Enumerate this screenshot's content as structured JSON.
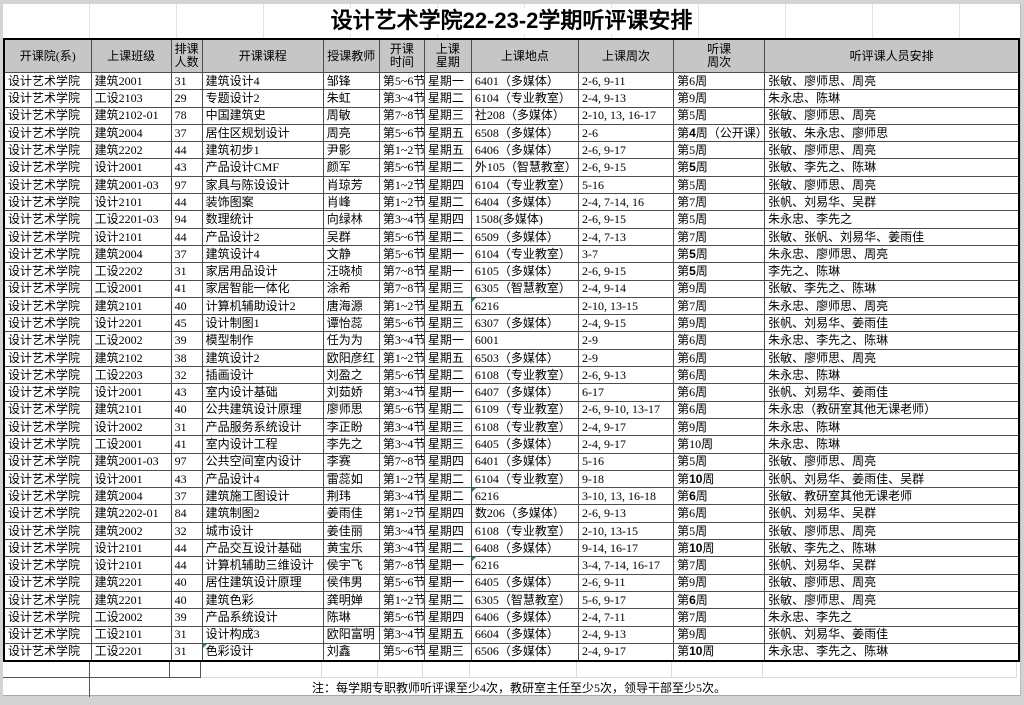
{
  "app": {
    "title_prefix": "设计艺术学院",
    "title_num": "22-23-2",
    "title_suffix": "学期听评课安排"
  },
  "colors": {
    "header_bg": "#c6c6c6",
    "grid_line": "#4d4d4d",
    "outer_border": "#000000",
    "page_bg": "#d3d3d3",
    "flag_green": "#1e8f3e"
  },
  "table": {
    "columns": [
      {
        "label": "开课院(系)"
      },
      {
        "label": "上课班级"
      },
      {
        "label": "排课\n人数"
      },
      {
        "label": "开课课程"
      },
      {
        "label": "授课教师"
      },
      {
        "label": "开课\n时间"
      },
      {
        "label": "上课\n星期"
      },
      {
        "label": "上课地点"
      },
      {
        "label": "上课周次"
      },
      {
        "label": "听课\n周次"
      },
      {
        "label": "听评课人员安排"
      }
    ],
    "rows": [
      {
        "dept": "设计艺术学院",
        "class": "建筑2001",
        "count": "31",
        "course": "建筑设计4",
        "teacher": "邹锋",
        "time": "第5~6节",
        "day": "星期一",
        "place": "6401（多媒体）",
        "weeks": "2-6, 9-11",
        "listen": "第6周",
        "listen_bold": false,
        "staff": "张敏、廖师思、周亮"
      },
      {
        "dept": "设计艺术学院",
        "class": "工设2103",
        "count": "29",
        "course": "专题设计2",
        "teacher": "朱虹",
        "time": "第3~4节",
        "day": "星期二",
        "place": "6104（专业教室）",
        "weeks": "2-4, 9-13",
        "listen": "第9周",
        "listen_bold": false,
        "staff": "朱永忠、陈琳"
      },
      {
        "dept": "设计艺术学院",
        "class": "建筑2102-01",
        "count": "78",
        "course": "中国建筑史",
        "teacher": "周敏",
        "time": "第7~8节",
        "day": "星期三",
        "place": "社208（多媒体）",
        "weeks": "2-10, 13, 16-17",
        "listen": "第5周",
        "listen_bold": false,
        "staff": "张敏、廖师思、周亮"
      },
      {
        "dept": "设计艺术学院",
        "class": "建筑2004",
        "count": "37",
        "course": "居住区规划设计",
        "teacher": "周亮",
        "time": "第5~6节",
        "day": "星期五",
        "place": "6508（多媒体）",
        "weeks": "2-6",
        "listen": "第4周（公开课）",
        "listen_bold": true,
        "staff": "张敏、朱永忠、廖师思"
      },
      {
        "dept": "设计艺术学院",
        "class": "建筑2202",
        "count": "44",
        "course": "建筑初步1",
        "teacher": "尹影",
        "time": "第1~2节",
        "day": "星期五",
        "place": "6406（多媒体）",
        "weeks": "2-6, 9-17",
        "listen": "第5周",
        "listen_bold": false,
        "staff": "张敏、廖师思、周亮"
      },
      {
        "dept": "设计艺术学院",
        "class": "设计2001",
        "count": "43",
        "course": "产品设计CMF",
        "teacher": "颜军",
        "time": "第5~6节",
        "day": "星期二",
        "place": "外105（智慧教室）",
        "weeks": "2-6, 9-15",
        "listen": "第5周",
        "listen_bold": true,
        "staff": "张敏、李先之、陈琳"
      },
      {
        "dept": "设计艺术学院",
        "class": "建筑2001-03",
        "count": "97",
        "course": "家具与陈设设计",
        "teacher": "肖琼芳",
        "time": "第1~2节",
        "day": "星期四",
        "place": "6104（专业教室）",
        "weeks": "5-16",
        "listen": "第5周",
        "listen_bold": false,
        "staff": "张敏、廖师思、周亮"
      },
      {
        "dept": "设计艺术学院",
        "class": "设计2101",
        "count": "44",
        "course": "装饰图案",
        "teacher": "肖峰",
        "time": "第1~2节",
        "day": "星期二",
        "place": "6404（多媒体）",
        "weeks": "2-4, 7-14, 16",
        "listen": "第7周",
        "listen_bold": false,
        "staff": "张帆、刘易华、吴群"
      },
      {
        "dept": "设计艺术学院",
        "class": "工设2201-03",
        "count": "94",
        "course": "数理统计",
        "teacher": "向绿林",
        "time": "第3~4节",
        "day": "星期四",
        "place": "1508(多媒体)",
        "weeks": "2-6, 9-15",
        "listen": "第5周",
        "listen_bold": false,
        "staff": "朱永忠、李先之"
      },
      {
        "dept": "设计艺术学院",
        "class": "设计2101",
        "count": "44",
        "course": "产品设计2",
        "teacher": "吴群",
        "time": "第5~6节",
        "day": "星期二",
        "place": "6509（多媒体）",
        "weeks": "2-4, 7-13",
        "listen": "第7周",
        "listen_bold": false,
        "staff": "张敏、张帆、刘易华、姜雨佳"
      },
      {
        "dept": "设计艺术学院",
        "class": "建筑2004",
        "count": "37",
        "course": "建筑设计4",
        "teacher": "文静",
        "time": "第5~6节",
        "day": "星期一",
        "place": "6104（专业教室）",
        "weeks": "3-7",
        "listen": "第5周",
        "listen_bold": true,
        "staff": "朱永忠、廖师思、周亮"
      },
      {
        "dept": "设计艺术学院",
        "class": "工设2202",
        "count": "31",
        "course": "家居用品设计",
        "teacher": "汪晓桢",
        "time": "第7~8节",
        "day": "星期一",
        "place": "6105（多媒体）",
        "weeks": "2-6, 9-15",
        "listen": "第5周",
        "listen_bold": true,
        "staff": "李先之、陈琳"
      },
      {
        "dept": "设计艺术学院",
        "class": "工设2001",
        "count": "41",
        "course": "家居智能一体化",
        "teacher": "涂希",
        "time": "第7~8节",
        "day": "星期三",
        "place": "6305（智慧教室）",
        "weeks": "2-4, 9-14",
        "listen": "第9周",
        "listen_bold": false,
        "staff": "张敏、李先之、陈琳"
      },
      {
        "dept": "设计艺术学院",
        "class": "建筑2101",
        "count": "40",
        "course": "计算机辅助设计2",
        "teacher": "唐海源",
        "time": "第1~2节",
        "day": "星期五",
        "place": "6216",
        "weeks": "2-10, 13-15",
        "listen": "第7周",
        "listen_bold": false,
        "staff": "朱永忠、廖师思、周亮",
        "flag": "place"
      },
      {
        "dept": "设计艺术学院",
        "class": "设计2201",
        "count": "45",
        "course": "设计制图1",
        "teacher": "谭怡蕊",
        "time": "第5~6节",
        "day": "星期三",
        "place": "6307（多媒体）",
        "weeks": "2-4, 9-15",
        "listen": "第9周",
        "listen_bold": false,
        "staff": "张帆、刘易华、姜雨佳"
      },
      {
        "dept": "设计艺术学院",
        "class": "工设2002",
        "count": "39",
        "course": "模型制作",
        "teacher": "任为为",
        "time": "第3~4节",
        "day": "星期一",
        "place": "6001",
        "weeks": "2-9",
        "listen": "第6周",
        "listen_bold": false,
        "staff": "朱永忠、李先之、陈琳"
      },
      {
        "dept": "设计艺术学院",
        "class": "建筑2102",
        "count": "38",
        "course": "建筑设计2",
        "teacher": "欧阳彦红",
        "time": "第1~2节",
        "day": "星期五",
        "place": "6503（多媒体）",
        "weeks": "2-9",
        "listen": "第6周",
        "listen_bold": false,
        "staff": "张敏、廖师思、周亮"
      },
      {
        "dept": "设计艺术学院",
        "class": "工设2203",
        "count": "32",
        "course": "插画设计",
        "teacher": "刘盈之",
        "time": "第5~6节",
        "day": "星期二",
        "place": "6108（专业教室）",
        "weeks": "2-6, 9-13",
        "listen": "第6周",
        "listen_bold": false,
        "staff": "朱永忠、陈琳"
      },
      {
        "dept": "设计艺术学院",
        "class": "设计2001",
        "count": "43",
        "course": "室内设计基础",
        "teacher": "刘茹娇",
        "time": "第3~4节",
        "day": "星期一",
        "place": "6407（多媒体）",
        "weeks": "6-17",
        "listen": "第6周",
        "listen_bold": false,
        "staff": "张帆、刘易华、姜雨佳"
      },
      {
        "dept": "设计艺术学院",
        "class": "建筑2101",
        "count": "40",
        "course": "公共建筑设计原理",
        "teacher": "廖师思",
        "time": "第5~6节",
        "day": "星期二",
        "place": "6109（专业教室）",
        "weeks": "2-6, 9-10, 13-17",
        "listen": "第6周",
        "listen_bold": false,
        "staff": "朱永忠（教研室其他无课老师）"
      },
      {
        "dept": "设计艺术学院",
        "class": "设计2002",
        "count": "31",
        "course": "产品服务系统设计",
        "teacher": "李正盼",
        "time": "第3~4节",
        "day": "星期三",
        "place": "6108（专业教室）",
        "weeks": "2-4, 9-17",
        "listen": "第9周",
        "listen_bold": false,
        "staff": "朱永忠、陈琳"
      },
      {
        "dept": "设计艺术学院",
        "class": "工设2001",
        "count": "41",
        "course": "室内设计工程",
        "teacher": "李先之",
        "time": "第3~4节",
        "day": "星期三",
        "place": "6405（多媒体）",
        "weeks": "2-4, 9-17",
        "listen": "第10周",
        "listen_bold": false,
        "staff": "朱永忠、陈琳"
      },
      {
        "dept": "设计艺术学院",
        "class": "建筑2001-03",
        "count": "97",
        "course": "公共空间室内设计",
        "teacher": "李赛",
        "time": "第7~8节",
        "day": "星期四",
        "place": "6401（多媒体）",
        "weeks": "5-16",
        "listen": "第5周",
        "listen_bold": false,
        "staff": "张敏、廖师思、周亮"
      },
      {
        "dept": "设计艺术学院",
        "class": "设计2001",
        "count": "43",
        "course": "产品设计4",
        "teacher": "雷蕊如",
        "time": "第1~2节",
        "day": "星期二",
        "place": "6104（专业教室）",
        "weeks": "9-18",
        "listen": "第10周",
        "listen_bold": true,
        "staff": "张帆、刘易华、姜雨佳、吴群"
      },
      {
        "dept": "设计艺术学院",
        "class": "建筑2004",
        "count": "37",
        "course": "建筑施工图设计",
        "teacher": "荆玮",
        "time": "第3~4节",
        "day": "星期二",
        "place": "6216",
        "weeks": "3-10, 13, 16-18",
        "listen": "第6周",
        "listen_bold": true,
        "staff": "张敏、教研室其他无课老师",
        "flag": "place"
      },
      {
        "dept": "设计艺术学院",
        "class": "建筑2202-01",
        "count": "84",
        "course": "建筑制图2",
        "teacher": "姜雨佳",
        "time": "第1~2节",
        "day": "星期四",
        "place": "数206（多媒体）",
        "weeks": "2-6, 9-13",
        "listen": "第6周",
        "listen_bold": false,
        "staff": "张帆、刘易华、吴群"
      },
      {
        "dept": "设计艺术学院",
        "class": "建筑2002",
        "count": "32",
        "course": "城市设计",
        "teacher": "姜佳丽",
        "time": "第3~4节",
        "day": "星期四",
        "place": "6108（专业教室）",
        "weeks": "2-10, 13-15",
        "listen": "第5周",
        "listen_bold": false,
        "staff": "张敏、廖师思、周亮"
      },
      {
        "dept": "设计艺术学院",
        "class": "设计2101",
        "count": "44",
        "course": "产品交互设计基础",
        "teacher": "黄宝乐",
        "time": "第3~4节",
        "day": "星期二",
        "place": "6408（多媒体）",
        "weeks": "9-14, 16-17",
        "listen": "第10周",
        "listen_bold": true,
        "staff": "张敏、李先之、陈琳"
      },
      {
        "dept": "设计艺术学院",
        "class": "设计2101",
        "count": "44",
        "course": "计算机辅助三维设计",
        "teacher": "侯宇飞",
        "time": "第7~8节",
        "day": "星期一",
        "place": "6216",
        "weeks": "3-4, 7-14, 16-17",
        "listen": "第7周",
        "listen_bold": false,
        "staff": "张帆、刘易华、吴群",
        "flag": "place"
      },
      {
        "dept": "设计艺术学院",
        "class": "建筑2201",
        "count": "40",
        "course": "居住建筑设计原理",
        "teacher": "侯伟男",
        "time": "第5~6节",
        "day": "星期一",
        "place": "6405（多媒体）",
        "weeks": "2-6, 9-11",
        "listen": "第9周",
        "listen_bold": false,
        "staff": "张敏、廖师思、周亮"
      },
      {
        "dept": "设计艺术学院",
        "class": "建筑2201",
        "count": "40",
        "course": "建筑色彩",
        "teacher": "龚明婵",
        "time": "第1~2节",
        "day": "星期二",
        "place": "6305（智慧教室）",
        "weeks": "5-6, 9-17",
        "listen": "第6周",
        "listen_bold": true,
        "staff": "张敏、廖师思、周亮"
      },
      {
        "dept": "设计艺术学院",
        "class": "工设2002",
        "count": "39",
        "course": "产品系统设计",
        "teacher": "陈琳",
        "time": "第5~6节",
        "day": "星期四",
        "place": "6406（多媒体）",
        "weeks": "2-4, 7-11",
        "listen": "第7周",
        "listen_bold": false,
        "staff": "朱永忠、李先之"
      },
      {
        "dept": "设计艺术学院",
        "class": "工设2101",
        "count": "31",
        "course": "设计构成3",
        "teacher": "欧阳富明",
        "time": "第3~4节",
        "day": "星期五",
        "place": "6604（多媒体）",
        "weeks": "2-4, 9-13",
        "listen": "第9周",
        "listen_bold": false,
        "staff": "张帆、刘易华、姜雨佳"
      },
      {
        "dept": "设计艺术学院",
        "class": "工设2201",
        "count": "31",
        "course": "色彩设计",
        "teacher": "刘鑫",
        "time": "第5~6节",
        "day": "星期三",
        "place": "6506（多媒体）",
        "weeks": "2-4, 9-17",
        "listen": "第10周",
        "listen_bold": true,
        "staff": "朱永忠、李先之、陈琳",
        "flag": "course"
      }
    ]
  },
  "note": "注：每学期专职教师听评课至少4次，教研室主任至少5次，领导干部至少5次。"
}
